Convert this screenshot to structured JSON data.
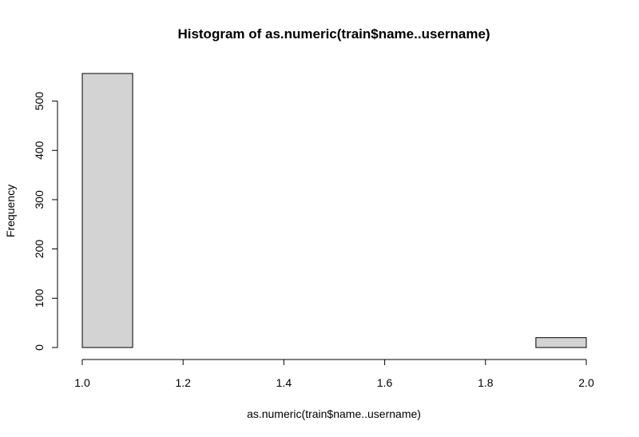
{
  "chart_data": {
    "type": "bar",
    "title": "Histogram of as.numeric(train$name..username)",
    "xlabel": "as.numeric(train$name..username)",
    "ylabel": "Frequency",
    "bins": [
      {
        "start": 1.0,
        "end": 1.1,
        "count": 556
      },
      {
        "start": 1.1,
        "end": 1.2,
        "count": 0
      },
      {
        "start": 1.2,
        "end": 1.3,
        "count": 0
      },
      {
        "start": 1.3,
        "end": 1.4,
        "count": 0
      },
      {
        "start": 1.4,
        "end": 1.5,
        "count": 0
      },
      {
        "start": 1.5,
        "end": 1.6,
        "count": 0
      },
      {
        "start": 1.6,
        "end": 1.7,
        "count": 0
      },
      {
        "start": 1.7,
        "end": 1.8,
        "count": 0
      },
      {
        "start": 1.8,
        "end": 1.9,
        "count": 0
      },
      {
        "start": 1.9,
        "end": 2.0,
        "count": 20
      }
    ],
    "xlim": [
      1.0,
      2.0
    ],
    "ylim": [
      0,
      556
    ],
    "x_ticks": [
      "1.0",
      "1.2",
      "1.4",
      "1.6",
      "1.8",
      "2.0"
    ],
    "y_ticks": [
      "0",
      "100",
      "200",
      "300",
      "400",
      "500"
    ],
    "bar_fill": "#d3d3d3",
    "bar_stroke": "#000000",
    "grid": false,
    "legend": "none"
  }
}
